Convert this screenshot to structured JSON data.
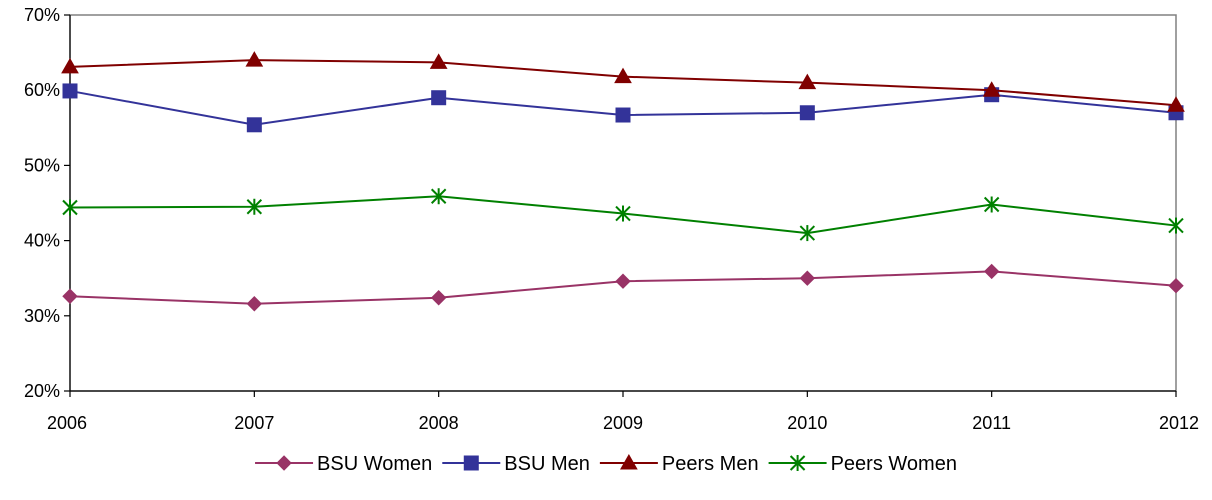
{
  "chart_data": {
    "type": "line",
    "title": "",
    "xlabel": "",
    "ylabel": "",
    "categories": [
      "2006",
      "2007",
      "2008",
      "2009",
      "2010",
      "2011",
      "2012"
    ],
    "ylim": [
      20,
      70
    ],
    "yticks": [
      20,
      30,
      40,
      50,
      60,
      70
    ],
    "ytick_labels": [
      "20%",
      "30%",
      "40%",
      "50%",
      "60%",
      "70%"
    ],
    "grid": false,
    "legend_position": "bottom",
    "series": [
      {
        "name": "BSU Women",
        "color": "#993366",
        "marker": "diamond",
        "values": [
          32.6,
          31.6,
          32.4,
          34.6,
          35.0,
          35.9,
          34.0
        ]
      },
      {
        "name": "BSU Men",
        "color": "#333399",
        "marker": "square",
        "values": [
          59.9,
          55.4,
          59.0,
          56.7,
          57.0,
          59.4,
          57.0
        ]
      },
      {
        "name": "Peers Men",
        "color": "#800000",
        "marker": "triangle",
        "values": [
          63.1,
          64.0,
          63.7,
          61.8,
          61.0,
          60.0,
          58.0
        ]
      },
      {
        "name": "Peers Women",
        "color": "#008000",
        "marker": "asterisk",
        "values": [
          44.4,
          44.5,
          45.9,
          43.6,
          41.0,
          44.8,
          42.0
        ]
      }
    ]
  }
}
